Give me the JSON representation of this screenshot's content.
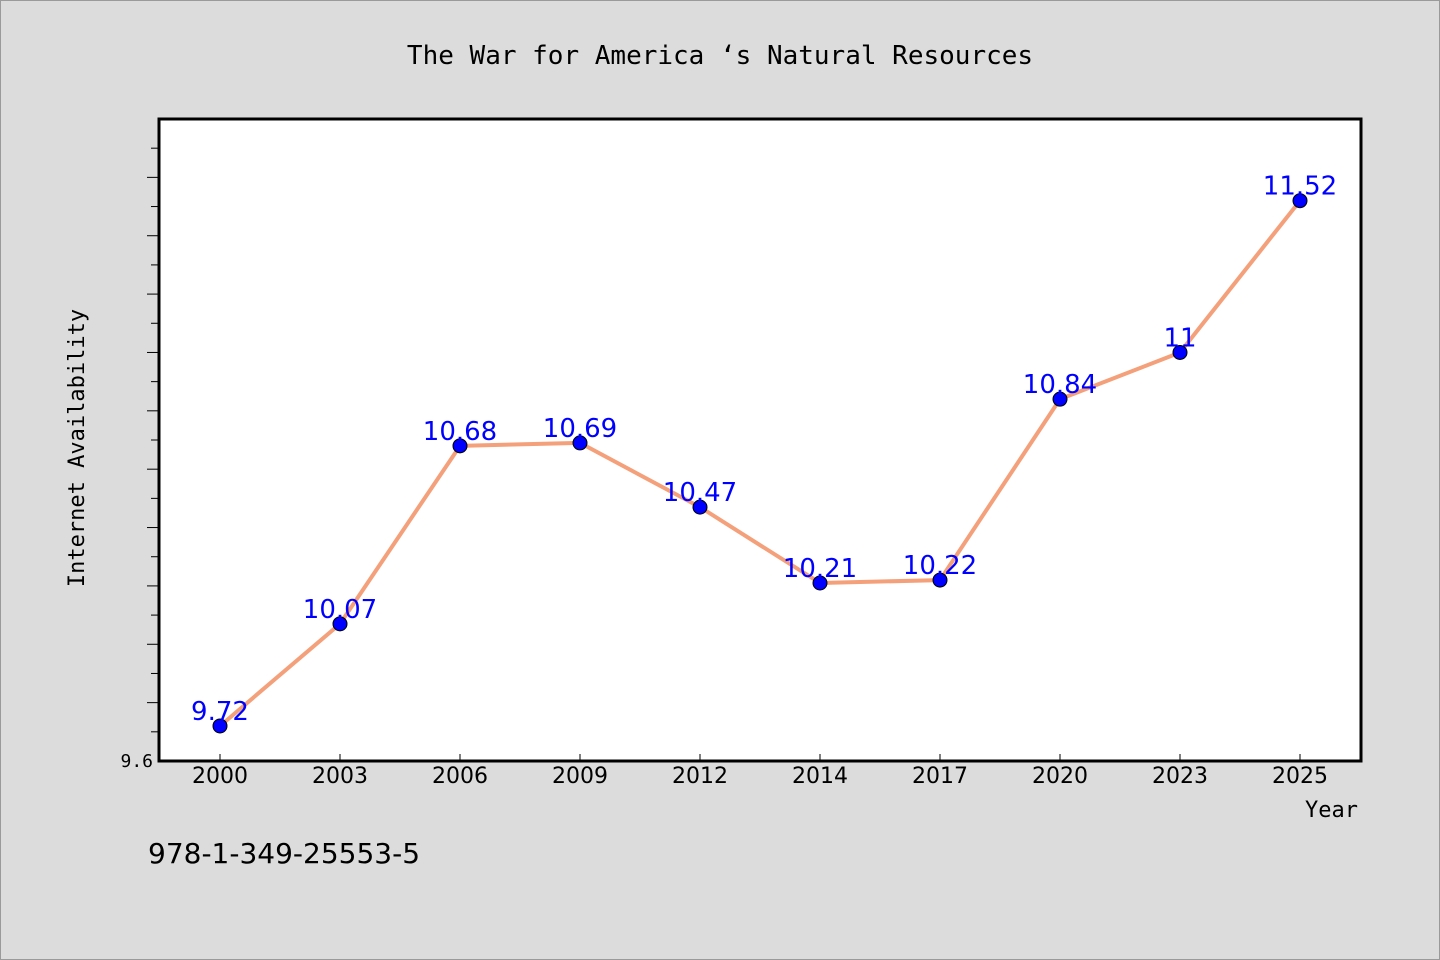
{
  "chart_data": {
    "type": "line",
    "title": "The War for America ‘s Natural Resources",
    "xlabel": "Year",
    "ylabel": "Internet Availability",
    "categories": [
      "2000",
      "2003",
      "2006",
      "2009",
      "2012",
      "2014",
      "2017",
      "2020",
      "2023",
      "2025"
    ],
    "series": [
      {
        "values": [
          9.72,
          10.07,
          10.68,
          10.69,
          10.47,
          10.21,
          10.22,
          10.84,
          11,
          11.52
        ],
        "labels": [
          "9.72",
          "10.07",
          "10.68",
          "10.69",
          "10.47",
          "10.21",
          "10.22",
          "10.84",
          "11",
          "11.52"
        ],
        "line_color": "#f4a07a",
        "marker_color": "#0000ff"
      }
    ],
    "ylim": [
      9.6,
      11.8
    ],
    "yticks_labeled": [
      "9.6"
    ],
    "grid": false
  },
  "footer": {
    "isbn": "978-1-349-25553-5"
  },
  "colors": {
    "background": "#dcdcdc",
    "plot_background": "#ffffff",
    "line": "#f4a07a",
    "marker": "#0000ff",
    "data_label": "#0000ff"
  }
}
